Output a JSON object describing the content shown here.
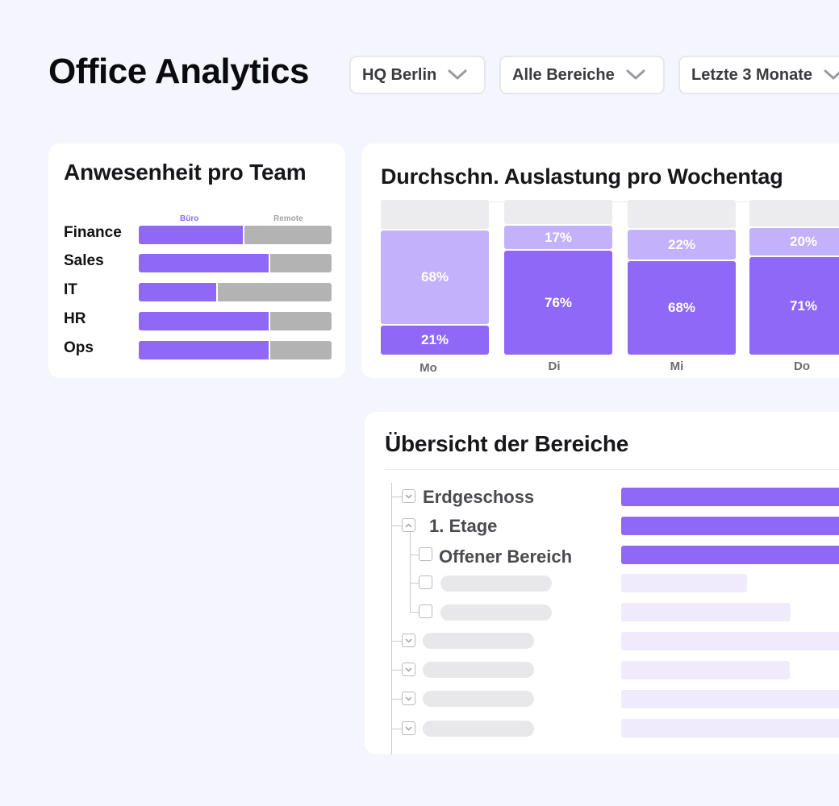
{
  "header": {
    "title": "Office Analytics",
    "filters": [
      {
        "label": "HQ Berlin"
      },
      {
        "label": "Alle Bereiche"
      },
      {
        "label": "Letzte 3 Monate"
      }
    ]
  },
  "team_attendance": {
    "title": "Anwesenheit pro Team",
    "legend": {
      "office": "Büro",
      "remote": "Remote"
    },
    "teams": [
      {
        "name": "Finance",
        "office_share": 0.55
      },
      {
        "name": "Sales",
        "office_share": 0.68
      },
      {
        "name": "IT",
        "office_share": 0.41
      },
      {
        "name": "HR",
        "office_share": 0.68
      },
      {
        "name": "Ops",
        "office_share": 0.68
      }
    ]
  },
  "utilization": {
    "title": "Durchschn. Auslastung pro Wochentag",
    "chart_data": {
      "type": "bar",
      "stacked": true,
      "categories": [
        "Mo",
        "Di",
        "Mi",
        "Do"
      ],
      "series": [
        {
          "name": "dark",
          "values": [
            21,
            76,
            68,
            71
          ]
        },
        {
          "name": "light",
          "values": [
            68,
            17,
            22,
            20
          ]
        }
      ],
      "labels": {
        "dark": [
          "21%",
          "76%",
          "68%",
          "71%"
        ],
        "light": [
          "68%",
          "17%",
          "22%",
          "20%"
        ]
      }
    }
  },
  "areas": {
    "title": "Übersicht der Bereiche",
    "items": [
      {
        "label": "Erdgeschoss"
      },
      {
        "label": "1. Etage"
      },
      {
        "label": "Offener Bereich"
      }
    ]
  }
}
